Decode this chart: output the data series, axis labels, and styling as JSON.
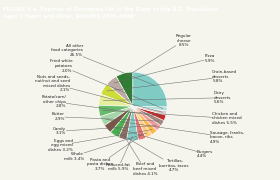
{
  "title": "FIGURE 3-4. Sources of Saturated Fat in the Diets of the U.S. Population\nAges 2 Years and Older, NHANES 2005-2006ᵃ",
  "slices": [
    {
      "label": "Regular\ncheese\n8.5%",
      "value": 8.5,
      "color": "#2e7d32"
    },
    {
      "label": "Pizza\n5.9%",
      "value": 5.9,
      "color": "#bcaaa4"
    },
    {
      "label": "Grain-based\ndesserts\n5.8%",
      "value": 5.8,
      "color": "#cddc39"
    },
    {
      "label": "Dairy\ndesserts\n5.6%",
      "value": 5.6,
      "color": "#e6ee9c"
    },
    {
      "label": "Chicken and\nchicken mixed\ndishes 5.5%",
      "value": 5.5,
      "color": "#66bb6a"
    },
    {
      "label": "Sausage, franks,\nbacon, ribs\n4.9%",
      "value": 4.9,
      "color": "#a5d6a7"
    },
    {
      "label": "Burgers\n4.4%",
      "value": 4.4,
      "color": "#795548"
    },
    {
      "label": "Tortillas,\nburritos, tacos\n4.7%",
      "value": 4.7,
      "color": "#4caf50"
    },
    {
      "label": "Beef and\nbeef mixed\ndishes 4.1%",
      "value": 4.1,
      "color": "#8d6e63"
    },
    {
      "label": "Reduced-fat\nmilk 5.9%",
      "value": 5.9,
      "color": "#80cbc4"
    },
    {
      "label": "Pasta and\npasta dishes\n3.7%",
      "value": 3.7,
      "color": "#e57373"
    },
    {
      "label": "Whole\nmilk 3.4%",
      "value": 3.4,
      "color": "#ffcc80"
    },
    {
      "label": "Eggs and\negg mixed\ndishes 3.2%",
      "value": 3.2,
      "color": "#ffb74d"
    },
    {
      "label": "Candy\n3.1%",
      "value": 3.1,
      "color": "#ef9a9a"
    },
    {
      "label": "Butter\n2.9%",
      "value": 2.9,
      "color": "#a1887f"
    },
    {
      "label": "Potato/corn/\nother chips\n2.8%",
      "value": 2.8,
      "color": "#c62828"
    },
    {
      "label": "Nuts and seeds,\nnut/nut and seed\nmixed dishes\n2.1%",
      "value": 2.1,
      "color": "#d7ccc8"
    },
    {
      "label": "Fried white\npotatoes\n2.0%",
      "value": 2.0,
      "color": "#b2dfdb"
    },
    {
      "label": "All other\nfood categories\n26.5%",
      "value": 26.5,
      "color": "#80cbc4"
    }
  ],
  "title_bg": "#4caf6a",
  "title_color": "#ffffff",
  "bg_color": "#f5f5ed"
}
